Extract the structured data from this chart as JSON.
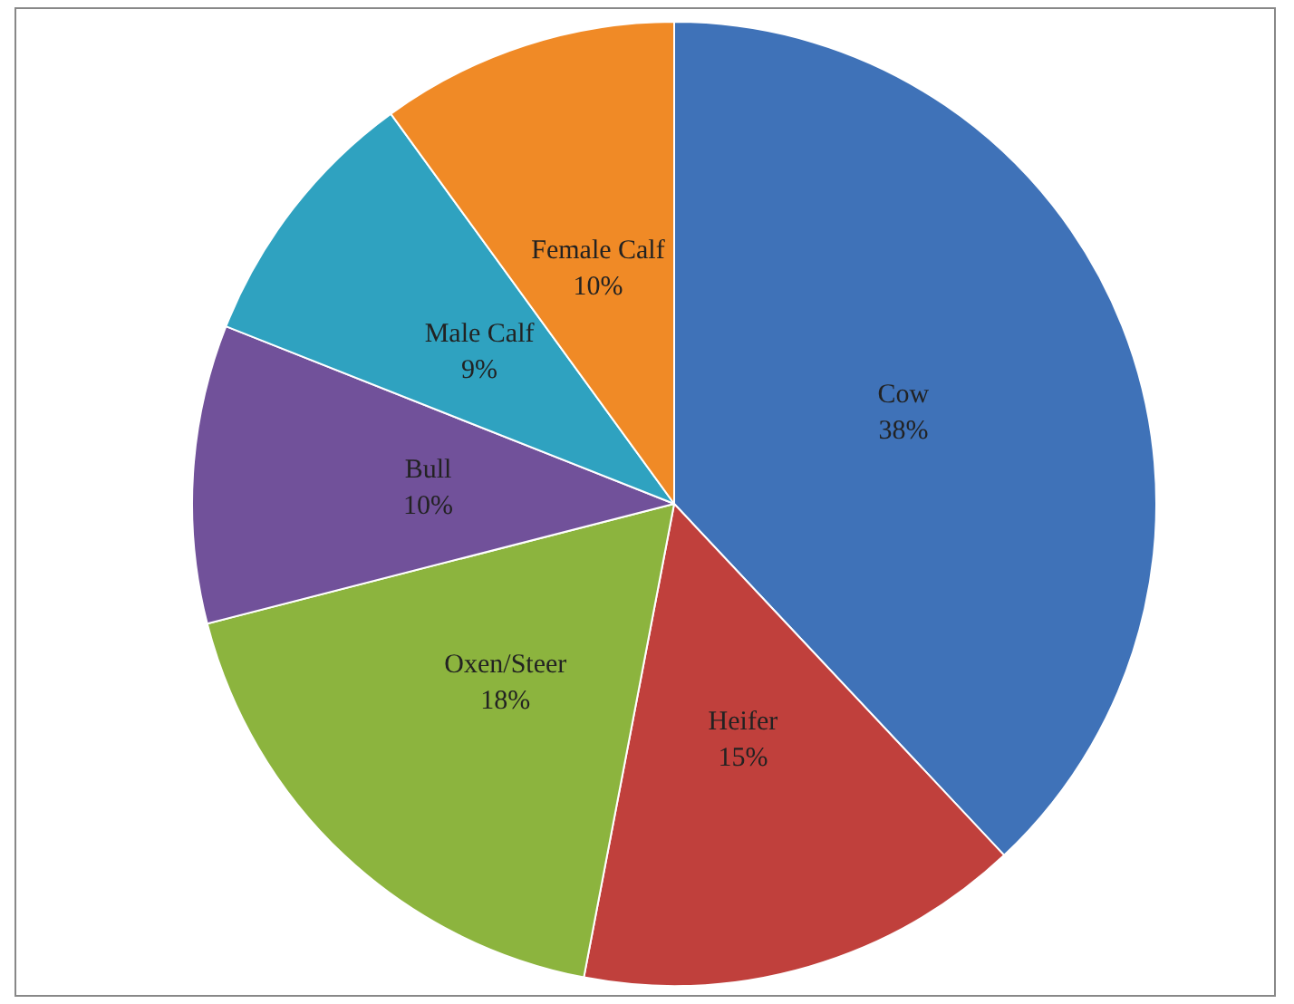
{
  "chart_data": {
    "type": "pie",
    "categories": [
      "Cow",
      "Heifer",
      "Oxen/Steer",
      "Bull",
      "Male Calf",
      "Female Calf"
    ],
    "values": [
      38,
      15,
      18,
      10,
      9,
      10
    ],
    "colors": [
      "#3f72b8",
      "#c0403c",
      "#8cb43e",
      "#71519a",
      "#2fa2c0",
      "#f08a26"
    ],
    "value_labels": [
      "38%",
      "15%",
      "18%",
      "10%",
      "9%",
      "10%"
    ],
    "legend": false
  }
}
